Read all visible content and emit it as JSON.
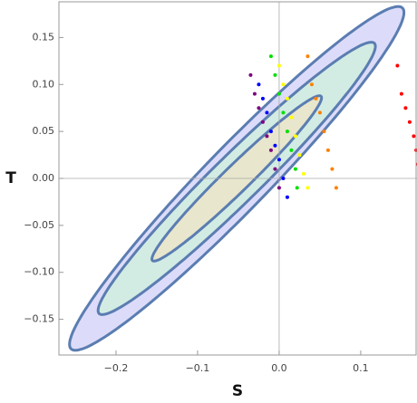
{
  "chart_data": {
    "type": "scatter",
    "xlabel": "S",
    "ylabel": "T",
    "xlim": [
      -0.27,
      0.169
    ],
    "ylim": [
      -0.188,
      0.188
    ],
    "xticks": [
      {
        "value": -0.2,
        "label": "−0.2"
      },
      {
        "value": -0.1,
        "label": "−0.1"
      },
      {
        "value": 0,
        "label": "0.0"
      },
      {
        "value": 0.1,
        "label": "0.1"
      }
    ],
    "yticks": [
      {
        "value": -0.15,
        "label": "−0.15"
      },
      {
        "value": -0.1,
        "label": "−0.10"
      },
      {
        "value": -0.05,
        "label": "−0.05"
      },
      {
        "value": 0,
        "label": "0.00"
      },
      {
        "value": 0.05,
        "label": "0.05"
      },
      {
        "value": 0.1,
        "label": "0.10"
      },
      {
        "value": 0.15,
        "label": "0.15"
      }
    ],
    "ellipses": [
      {
        "color": "#dcdcfa",
        "cx": -0.052,
        "cy": 0.0,
        "sx": 0.205,
        "sy": 0.183,
        "rho": 0.965
      },
      {
        "color": "#d2ece4",
        "cx": -0.052,
        "cy": 0.0,
        "sx": 0.17,
        "sy": 0.145,
        "rho": 0.97
      },
      {
        "color": "#e8e6cc",
        "cx": -0.052,
        "cy": 0.0,
        "sx": 0.104,
        "sy": 0.088,
        "rho": 0.975
      }
    ],
    "series": [
      {
        "color": "#800080",
        "x": [
          -0.035,
          -0.03,
          -0.025,
          -0.02,
          -0.015,
          -0.01,
          -0.005,
          0.0
        ],
        "y": [
          0.11,
          0.09,
          0.075,
          0.06,
          0.045,
          0.03,
          0.01,
          -0.01
        ]
      },
      {
        "color": "#0000ff",
        "x": [
          -0.025,
          -0.02,
          -0.015,
          -0.01,
          -0.005,
          0.0,
          0.005,
          0.01
        ],
        "y": [
          0.1,
          0.085,
          0.07,
          0.05,
          0.035,
          0.02,
          0.0,
          -0.02
        ]
      },
      {
        "color": "#00e000",
        "x": [
          -0.01,
          -0.005,
          0.0,
          0.005,
          0.01,
          0.015,
          0.02,
          0.022
        ],
        "y": [
          0.13,
          0.11,
          0.09,
          0.07,
          0.05,
          0.03,
          0.01,
          -0.01
        ]
      },
      {
        "color": "#ffff00",
        "x": [
          0.0,
          0.005,
          0.01,
          0.015,
          0.02,
          0.025,
          0.03,
          0.035
        ],
        "y": [
          0.12,
          0.1,
          0.085,
          0.065,
          0.045,
          0.025,
          0.005,
          -0.01
        ]
      },
      {
        "color": "#ff8000",
        "x": [
          0.035,
          0.04,
          0.045,
          0.05,
          0.055,
          0.06,
          0.065,
          0.07
        ],
        "y": [
          0.13,
          0.1,
          0.085,
          0.07,
          0.05,
          0.03,
          0.01,
          -0.01
        ]
      },
      {
        "color": "#ff0000",
        "x": [
          0.145,
          0.15,
          0.155,
          0.16,
          0.165,
          0.168,
          0.17
        ],
        "y": [
          0.12,
          0.09,
          0.075,
          0.06,
          0.045,
          0.03,
          0.015
        ]
      }
    ]
  }
}
